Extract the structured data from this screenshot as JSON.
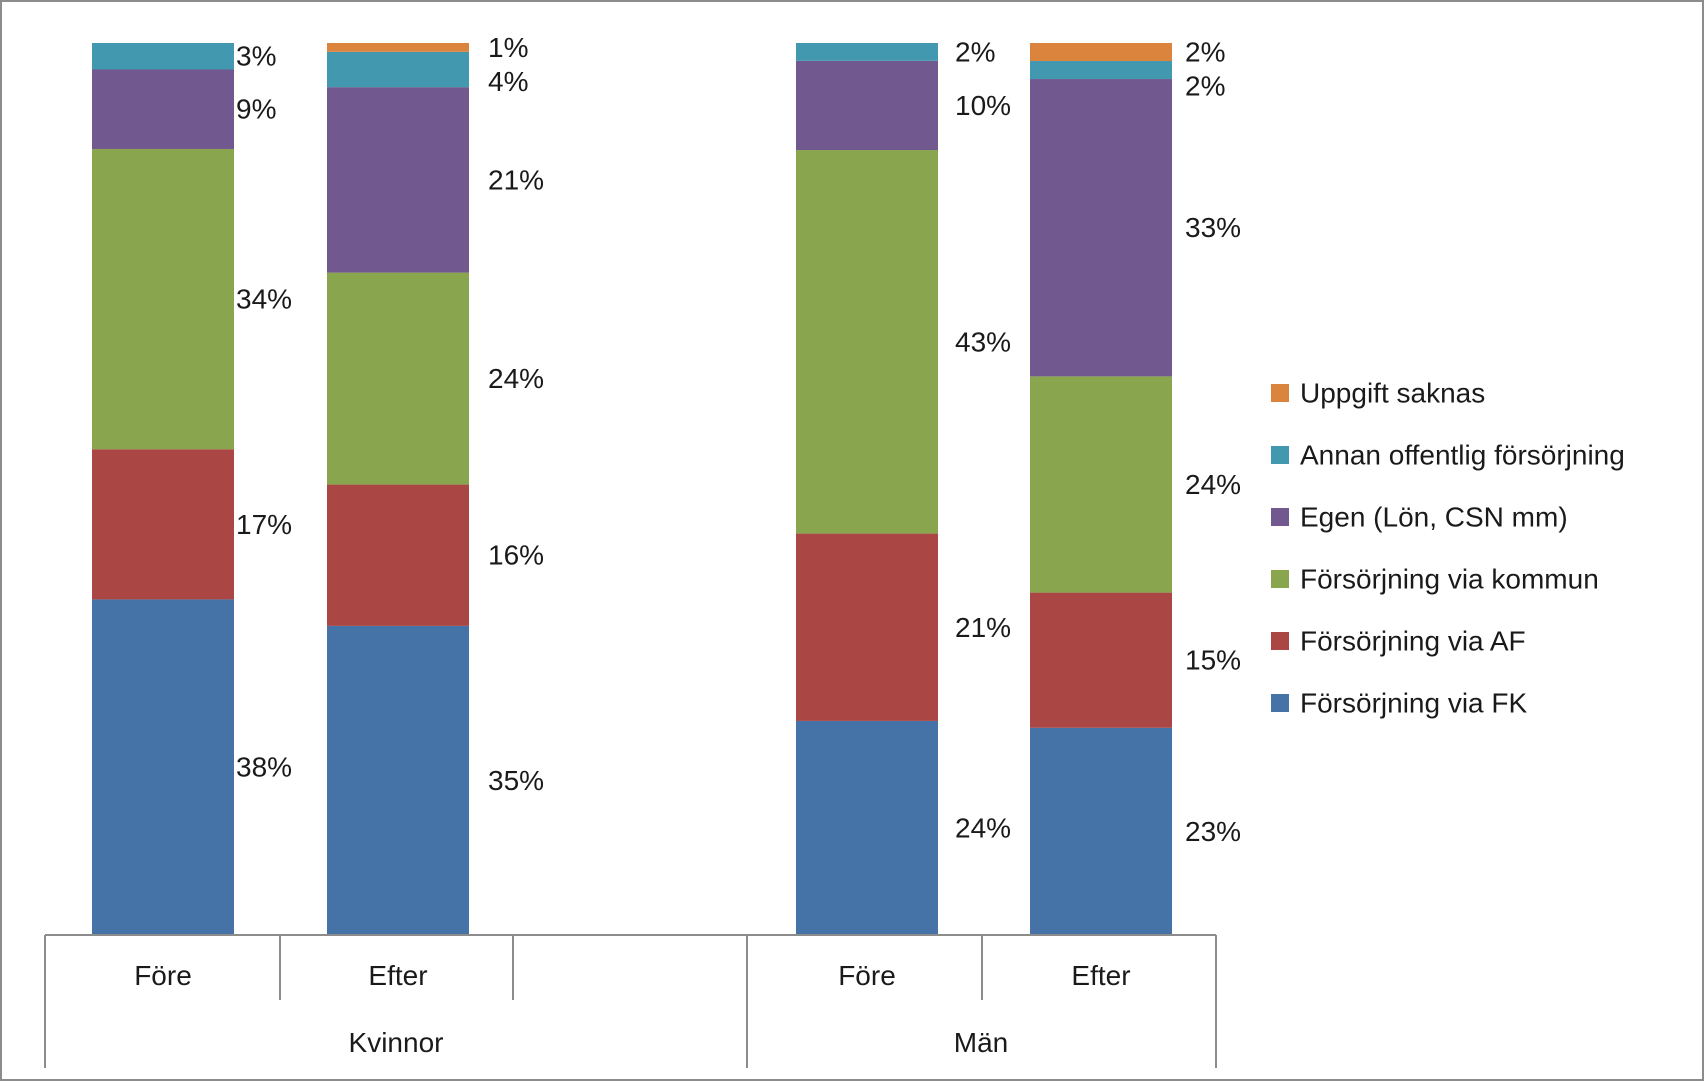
{
  "chart_data": {
    "type": "bar",
    "stacked": true,
    "percent_stacked": true,
    "groups": [
      {
        "label": "Kvinnor",
        "categories": [
          "Före",
          "Efter"
        ]
      },
      {
        "label": "Män",
        "categories": [
          "Före",
          "Efter"
        ]
      }
    ],
    "bars": [
      {
        "group": "Kvinnor",
        "category": "Före"
      },
      {
        "group": "Kvinnor",
        "category": "Efter"
      },
      {
        "group": "Män",
        "category": "Före"
      },
      {
        "group": "Män",
        "category": "Efter"
      }
    ],
    "series": [
      {
        "name": "Försörjning via FK",
        "color": "#4573a7",
        "values": [
          38,
          35,
          24,
          23
        ],
        "labels": [
          "38%",
          "35%",
          "24%",
          "23%"
        ]
      },
      {
        "name": "Försörjning via AF",
        "color": "#aa4643",
        "values": [
          17,
          16,
          21,
          15
        ],
        "labels": [
          "17%",
          "16%",
          "21%",
          "15%"
        ]
      },
      {
        "name": "Försörjning via kommun",
        "color": "#89a54e",
        "values": [
          34,
          24,
          43,
          24
        ],
        "labels": [
          "34%",
          "24%",
          "43%",
          "24%"
        ]
      },
      {
        "name": "Egen (Lön, CSN mm)",
        "color": "#71588f",
        "values": [
          9,
          21,
          10,
          33
        ],
        "labels": [
          "9%",
          "21%",
          "10%",
          "33%"
        ]
      },
      {
        "name": "Annan offentlig försörjning",
        "color": "#4198af",
        "values": [
          3,
          4,
          2,
          2
        ],
        "labels": [
          "3%",
          "4%",
          "2%",
          "2%"
        ]
      },
      {
        "name": "Uppgift saknas",
        "color": "#db843d",
        "values": [
          0,
          1,
          0,
          2
        ],
        "labels": [
          "",
          "1%",
          "",
          "2%"
        ]
      }
    ],
    "legend_position": "right",
    "grid": false
  }
}
